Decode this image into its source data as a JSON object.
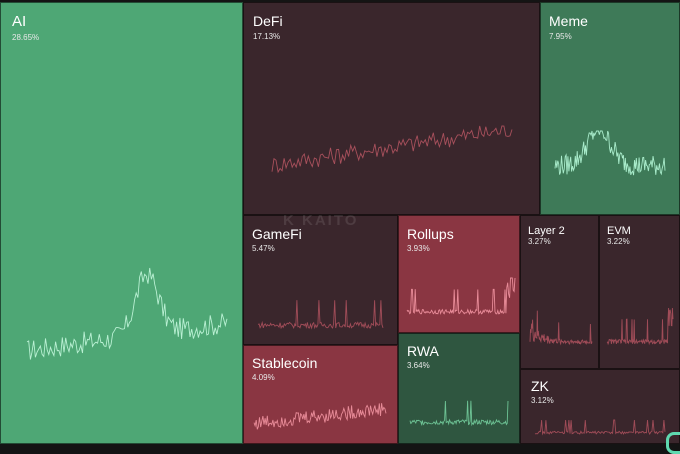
{
  "watermark": "K KAITO",
  "sectors": [
    {
      "key": "ai",
      "name": "AI",
      "share": "28.65%",
      "color": "#4ea775",
      "line": "#b9f0d3",
      "trend": "ai"
    },
    {
      "key": "defi",
      "name": "DeFi",
      "share": "17.13%",
      "color": "#3a262c",
      "line": "#a8505c",
      "trend": "defi"
    },
    {
      "key": "meme",
      "name": "Meme",
      "share": "7.95%",
      "color": "#3e7a58",
      "line": "#a9eccb",
      "trend": "meme"
    },
    {
      "key": "gamefi",
      "name": "GameFi",
      "share": "5.47%",
      "color": "#3a262c",
      "line": "#a04c58",
      "trend": "flat"
    },
    {
      "key": "rollups",
      "name": "Rollups",
      "share": "3.93%",
      "color": "#8a3642",
      "line": "#e88b98",
      "trend": "end"
    },
    {
      "key": "layer2",
      "name": "Layer 2",
      "share": "3.27%",
      "color": "#3a262c",
      "line": "#a04c58",
      "trend": "decay"
    },
    {
      "key": "evm",
      "name": "EVM",
      "share": "3.22%",
      "color": "#3a262c",
      "line": "#a04c58",
      "trend": "end"
    },
    {
      "key": "stablecoin",
      "name": "Stablecoin",
      "share": "4.09%",
      "color": "#8a3642",
      "line": "#e88b98",
      "trend": "rise"
    },
    {
      "key": "rwa",
      "name": "RWA",
      "share": "3.64%",
      "color": "#2f5640",
      "line": "#6dc294",
      "trend": "flat"
    },
    {
      "key": "zk",
      "name": "ZK",
      "share": "3.12%",
      "color": "#3a262c",
      "line": "#a04c58",
      "trend": "flat"
    }
  ]
}
